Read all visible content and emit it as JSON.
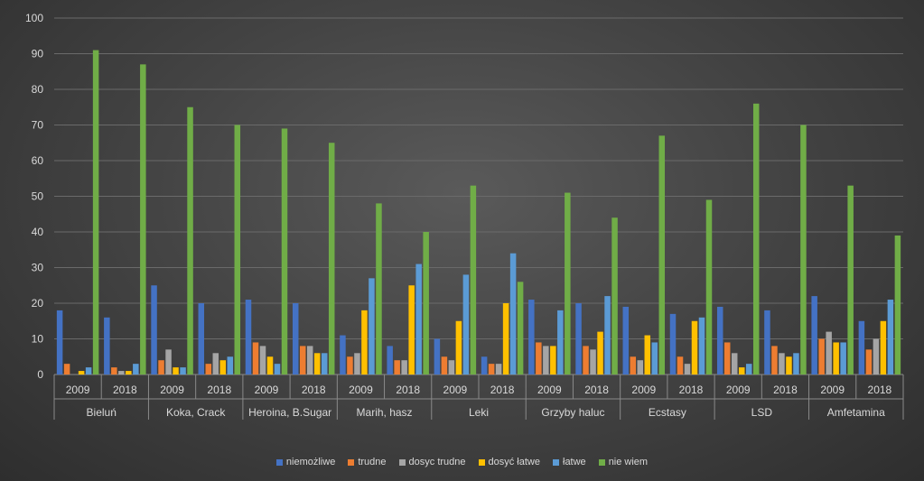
{
  "chart_data": {
    "type": "bar",
    "ylim": [
      0,
      100
    ],
    "yticks": [
      0,
      10,
      20,
      30,
      40,
      50,
      60,
      70,
      80,
      90,
      100
    ],
    "grid": true,
    "legend_position": "bottom",
    "groups": [
      {
        "label": "Bieluń",
        "years": [
          "2009",
          "2018"
        ]
      },
      {
        "label": "Koka, Crack",
        "years": [
          "2009",
          "2018"
        ]
      },
      {
        "label": "Heroina, B.Sugar",
        "years": [
          "2009",
          "2018"
        ]
      },
      {
        "label": "Marih, hasz",
        "years": [
          "2009",
          "2018"
        ]
      },
      {
        "label": "Leki",
        "years": [
          "2009",
          "2018"
        ]
      },
      {
        "label": "Grzyby haluc",
        "years": [
          "2009",
          "2018"
        ]
      },
      {
        "label": "Ecstasy",
        "years": [
          "2009",
          "2018"
        ]
      },
      {
        "label": "LSD",
        "years": [
          "2009",
          "2018"
        ]
      },
      {
        "label": "Amfetamina",
        "years": [
          "2009",
          "2018"
        ]
      }
    ],
    "series": [
      {
        "name": "niemożliwe",
        "color": "#4472c4",
        "values": [
          18,
          16,
          25,
          20,
          21,
          20,
          11,
          8,
          10,
          5,
          21,
          20,
          19,
          17,
          19,
          18,
          22,
          15
        ]
      },
      {
        "name": "trudne",
        "color": "#ed7d31",
        "values": [
          3,
          2,
          4,
          3,
          9,
          8,
          5,
          4,
          5,
          3,
          9,
          8,
          5,
          5,
          9,
          8,
          10,
          7
        ]
      },
      {
        "name": "dosyc trudne",
        "color": "#a5a5a5",
        "values": [
          0,
          1,
          7,
          6,
          8,
          8,
          6,
          4,
          4,
          3,
          8,
          7,
          4,
          3,
          6,
          6,
          12,
          10
        ]
      },
      {
        "name": "dosyć łatwe",
        "color": "#ffc000",
        "values": [
          1,
          1,
          2,
          4,
          5,
          6,
          18,
          25,
          15,
          20,
          8,
          12,
          11,
          15,
          2,
          5,
          9,
          15
        ]
      },
      {
        "name": "łatwe",
        "color": "#5b9bd5",
        "values": [
          2,
          3,
          2,
          5,
          3,
          6,
          27,
          31,
          28,
          34,
          18,
          22,
          9,
          16,
          3,
          6,
          9,
          21
        ]
      },
      {
        "name": "nie wiem",
        "color": "#70ad47",
        "values": [
          91,
          87,
          75,
          70,
          69,
          65,
          48,
          40,
          53,
          26,
          51,
          44,
          67,
          49,
          76,
          70,
          53,
          39
        ]
      }
    ]
  }
}
